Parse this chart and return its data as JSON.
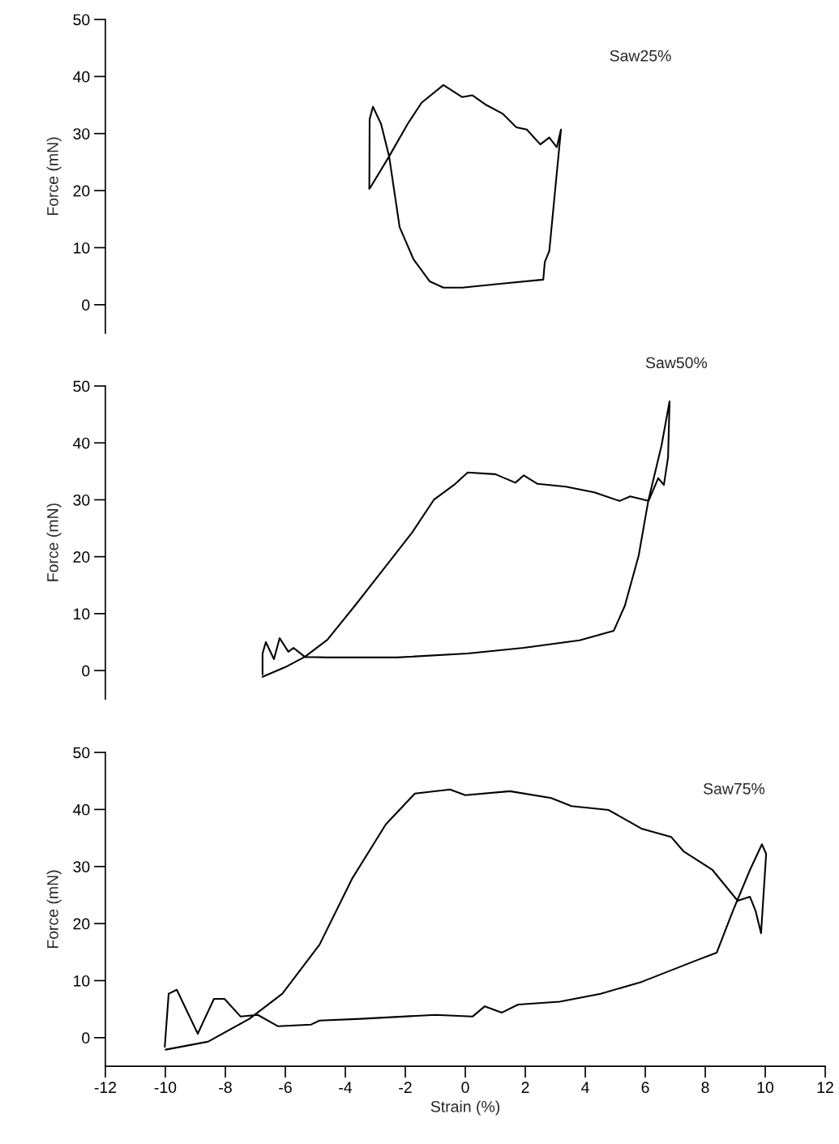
{
  "chart_data": [
    {
      "type": "line",
      "xlim": [
        -12,
        12
      ],
      "xticks": [
        -12,
        -10,
        -8,
        -6,
        -4,
        -2,
        0,
        2,
        4,
        6,
        8,
        10,
        12
      ],
      "ylim": [
        -5,
        50
      ],
      "yticks": [
        0,
        10,
        20,
        30,
        40,
        50
      ],
      "ylabel": "Force (mN)",
      "tick_labels": "y",
      "grid": false,
      "legend": false,
      "series": [
        {
          "name": "Saw25%",
          "color": "#000000",
          "x": [
            -3.17,
            -2.54,
            -1.92,
            -1.46,
            -0.73,
            -0.11,
            0.24,
            0.7,
            1.24,
            1.7,
            2.05,
            2.5,
            2.8,
            3.05,
            3.19,
            3.05,
            2.8,
            2.65,
            2.6,
            1.24,
            -0.1,
            -0.73,
            -1.19,
            -1.73,
            -2.19,
            -2.54,
            -2.81,
            -3.08,
            -3.19,
            -3.2
          ],
          "values": [
            20.5,
            26,
            31.7,
            35.4,
            38.5,
            36.4,
            36.7,
            35,
            33.5,
            31.1,
            30.7,
            28.1,
            29.3,
            27.6,
            30.7,
            23.1,
            9.4,
            7.5,
            4.4,
            3.7,
            3.0,
            3.0,
            4.1,
            8,
            13.6,
            26,
            31.7,
            34.7,
            32.5,
            20.3
          ]
        }
      ]
    },
    {
      "type": "line",
      "xlim": [
        -12,
        12
      ],
      "xticks": [
        -12,
        -10,
        -8,
        -6,
        -4,
        -2,
        0,
        2,
        4,
        6,
        8,
        10,
        12
      ],
      "ylim": [
        -5,
        50
      ],
      "yticks": [
        0,
        10,
        20,
        30,
        40,
        50
      ],
      "ylabel": "Force (mN)",
      "tick_labels": "y",
      "grid": false,
      "legend": false,
      "series": [
        {
          "name": "Saw50%",
          "color": "#000000",
          "x": [
            -6.76,
            -6.0,
            -5.35,
            -4.6,
            -3.68,
            -2.73,
            -1.78,
            -1.05,
            -0.38,
            0.08,
            1.0,
            1.67,
            1.95,
            2.41,
            3.35,
            4.3,
            5.14,
            5.5,
            6.11,
            6.43,
            6.62,
            6.76,
            6.81,
            6.54,
            6.1,
            5.78,
            5.32,
            4.95,
            3.81,
            1.95,
            0.08,
            -2.27,
            -4.6,
            -5.35,
            -5.73,
            -5.9,
            -6.19,
            -6.38,
            -6.65,
            -6.76,
            -6.76
          ],
          "values": [
            -1.1,
            0.6,
            2.4,
            5.4,
            11.4,
            17.8,
            24.2,
            30,
            32.6,
            34.8,
            34.5,
            33,
            34.3,
            32.8,
            32.3,
            31.3,
            29.8,
            30.6,
            29.8,
            33.8,
            32.6,
            37.5,
            47.3,
            39.5,
            29.8,
            20.2,
            11.4,
            7,
            5.3,
            4.0,
            3.0,
            2.3,
            2.3,
            2.4,
            4,
            3.3,
            5.7,
            2.0,
            5.0,
            3,
            -0.7
          ]
        }
      ]
    },
    {
      "type": "line",
      "xlim": [
        -12,
        12
      ],
      "xticks": [
        -12,
        -10,
        -8,
        -6,
        -4,
        -2,
        0,
        2,
        4,
        6,
        8,
        10,
        12
      ],
      "ylim": [
        -5,
        50
      ],
      "yticks": [
        0,
        10,
        20,
        30,
        40,
        50
      ],
      "ylabel": "Force (mN)",
      "xlabel": "Strain (%)",
      "grid": false,
      "legend": false,
      "series": [
        {
          "name": "Saw75%",
          "color": "#000000",
          "x": [
            -9.99,
            -8.58,
            -7.2,
            -6.1,
            -4.86,
            -3.76,
            -2.65,
            -1.68,
            -0.51,
            0.0,
            1.49,
            2.86,
            3.54,
            4.78,
            5.89,
            6.86,
            7.27,
            8.24,
            9.08,
            9.49,
            9.68,
            9.86,
            10.03,
            9.89,
            9.49,
            8.92,
            8.38,
            7.68,
            5.89,
            4.51,
            3.14,
            1.76,
            1.22,
            0.65,
            0.24,
            -1.0,
            -3.49,
            -4.86,
            -5.14,
            -6.24,
            -6.92,
            -7.49,
            -8.03,
            -8.38,
            -8.92,
            -9.62,
            -9.89,
            -10.02
          ],
          "values": [
            -2.1,
            -0.7,
            3.3,
            7.7,
            16.3,
            28,
            37.4,
            42.8,
            43.5,
            42.5,
            43.2,
            42,
            40.6,
            39.9,
            36.6,
            35.2,
            32.7,
            29.4,
            24,
            24.7,
            22.2,
            18.3,
            32.2,
            33.9,
            29.4,
            22.2,
            14.9,
            13.5,
            9.8,
            7.7,
            6.3,
            5.8,
            4.4,
            5.5,
            3.7,
            4.0,
            3.3,
            3.0,
            2.3,
            2.0,
            4,
            3.7,
            6.8,
            6.8,
            0.7,
            8.4,
            7.7,
            -1.6
          ]
        }
      ]
    }
  ]
}
